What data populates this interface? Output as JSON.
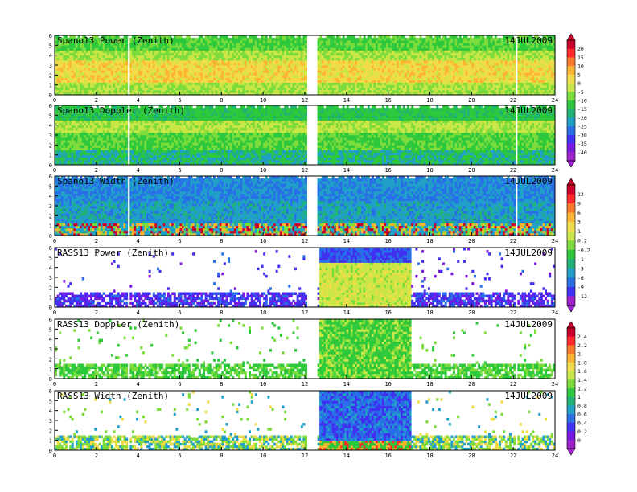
{
  "date_label": "14JUL2009",
  "panels": [
    {
      "title": "Spano13 Power (Zenith)",
      "field": "power_spano",
      "data_extent": [
        0,
        24
      ],
      "colorbar": 0
    },
    {
      "title": "Spano13 Doppler (Zenith)",
      "field": "doppler_spano",
      "data_extent": [
        0,
        24
      ],
      "colorbar": 0
    },
    {
      "title": "Spano13 Width (Zenith)",
      "field": "width_spano",
      "data_extent": [
        0,
        24
      ],
      "colorbar": 1
    },
    {
      "title": "RASS13 Power (Zenith)",
      "field": "power_rass",
      "data_extent": [
        0,
        24
      ],
      "colorbar": 1
    },
    {
      "title": "RASS13 Doppler (Zenith)",
      "field": "doppler_rass",
      "data_extent": [
        0,
        24
      ],
      "colorbar": 2
    },
    {
      "title": "RASS13 Width (Zenith)",
      "field": "width_rass",
      "data_extent": [
        0,
        24
      ],
      "colorbar": 2
    }
  ],
  "chart_data": {
    "type": "heatmap",
    "x_axis": {
      "range": [
        0,
        24
      ],
      "ticks": [
        "0",
        "2",
        "4",
        "6",
        "8",
        "10",
        "12",
        "14",
        "16",
        "18",
        "20",
        "22",
        "24"
      ]
    },
    "y_axis": {
      "range": [
        0,
        6
      ],
      "ticks": [
        "0",
        "1",
        "2",
        "3",
        "4",
        "5",
        "6"
      ]
    },
    "gaps_hours": [
      [
        3.5,
        3.6
      ],
      [
        12.1,
        12.55
      ],
      [
        22.1,
        22.2
      ]
    ],
    "rass_active_hours": [
      12.6,
      17.0
    ],
    "colorbars": [
      {
        "ticks": [
          "20",
          "15",
          "10",
          "5",
          "0",
          "-5",
          "-10",
          "-15",
          "-20",
          "-25",
          "-30",
          "-35",
          "-40"
        ],
        "colors": [
          "#c8002a",
          "#ff2a2a",
          "#ff7a28",
          "#ffb430",
          "#f0dc46",
          "#c8e646",
          "#7cdc3c",
          "#2ec83c",
          "#1eb478",
          "#20a0c8",
          "#2870e8",
          "#4030f0",
          "#7a18e0",
          "#a020d0"
        ]
      },
      {
        "ticks": [
          "12",
          "9",
          "6",
          "3",
          "1",
          "0.2",
          "-0.2",
          "-1",
          "-3",
          "-6",
          "-9",
          "-12"
        ],
        "colors": [
          "#c8002a",
          "#ff2a2a",
          "#ff7a28",
          "#ffb430",
          "#f0dc46",
          "#c8e646",
          "#7cdc3c",
          "#2ec83c",
          "#1eb478",
          "#20a0c8",
          "#2870e8",
          "#4030f0",
          "#a020d0"
        ]
      },
      {
        "ticks": [
          "2.4",
          "2.2",
          "2",
          "1.8",
          "1.6",
          "1.4",
          "1.2",
          "1",
          "0.8",
          "0.6",
          "0.4",
          "0.2",
          "0"
        ],
        "colors": [
          "#c8002a",
          "#ff2a2a",
          "#ff7a28",
          "#ffb430",
          "#f0dc46",
          "#c8e646",
          "#7cdc3c",
          "#2ec83c",
          "#1eb478",
          "#20a0c8",
          "#2870e8",
          "#4030f0",
          "#7a18e0",
          "#a020d0"
        ]
      }
    ]
  }
}
